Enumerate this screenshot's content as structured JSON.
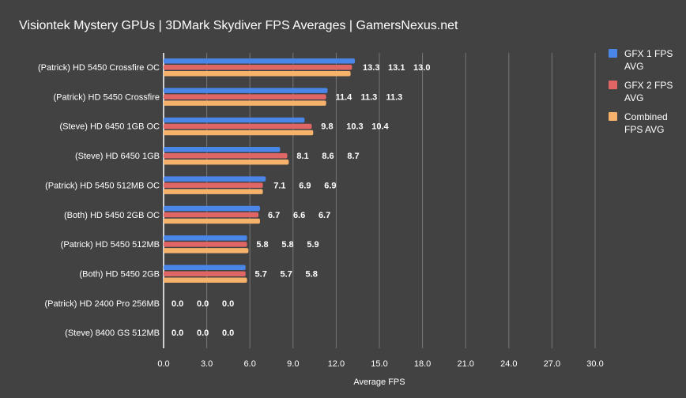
{
  "chart_data": {
    "type": "bar",
    "orientation": "horizontal",
    "title": "Visiontek Mystery GPUs | 3DMark Skydiver FPS Averages | GamersNexus.net",
    "xlabel": "Average FPS",
    "ylabel": "",
    "xlim": [
      0,
      30
    ],
    "xticks": [
      "0.0",
      "3.0",
      "6.0",
      "9.0",
      "12.0",
      "15.0",
      "18.0",
      "21.0",
      "24.0",
      "27.0",
      "30.0"
    ],
    "grid": true,
    "legend_position": "right",
    "categories": [
      "(Patrick) HD 5450 Crossfire OC",
      "(Patrick) HD 5450 Crossfire",
      "(Steve) HD 6450 1GB OC",
      "(Steve) HD 6450 1GB",
      "(Patrick) HD 5450 512MB OC",
      "(Both) HD 5450 2GB OC",
      "(Patrick) HD 5450 512MB",
      "(Both) HD 5450 2GB",
      "(Patrick) HD 2400 Pro 256MB",
      "(Steve) 8400 GS 512MB"
    ],
    "series": [
      {
        "name": "GFX 1 FPS AVG",
        "color": "#4a86e8",
        "values": [
          13.3,
          11.4,
          9.8,
          8.1,
          7.1,
          6.7,
          5.8,
          5.7,
          0.0,
          0.0
        ]
      },
      {
        "name": "GFX 2 FPS AVG",
        "color": "#e06666",
        "values": [
          13.1,
          11.3,
          10.3,
          8.6,
          6.9,
          6.6,
          5.8,
          5.7,
          0.0,
          0.0
        ]
      },
      {
        "name": "Combined FPS AVG",
        "color": "#f6b26b",
        "values": [
          13.0,
          11.3,
          10.4,
          8.7,
          6.9,
          6.7,
          5.9,
          5.8,
          0.0,
          0.0
        ]
      }
    ]
  }
}
